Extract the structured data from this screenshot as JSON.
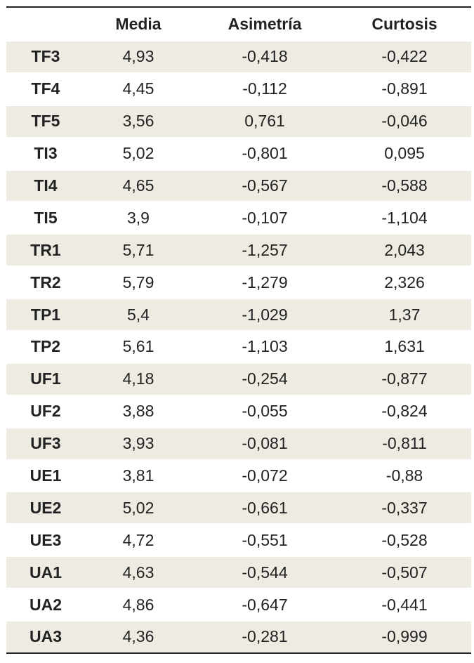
{
  "table": {
    "headers": [
      "",
      "Media",
      "Asimetría",
      "Curtosis"
    ],
    "rows": [
      {
        "label": "TF3",
        "media": "4,93",
        "asimetria": "-0,418",
        "curtosis": "-0,422"
      },
      {
        "label": "TF4",
        "media": "4,45",
        "asimetria": "-0,112",
        "curtosis": "-0,891"
      },
      {
        "label": "TF5",
        "media": "3,56",
        "asimetria": "0,761",
        "curtosis": "-0,046"
      },
      {
        "label": "TI3",
        "media": "5,02",
        "asimetria": "-0,801",
        "curtosis": "0,095"
      },
      {
        "label": "TI4",
        "media": "4,65",
        "asimetria": "-0,567",
        "curtosis": "-0,588"
      },
      {
        "label": "TI5",
        "media": "3,9",
        "asimetria": "-0,107",
        "curtosis": "-1,104"
      },
      {
        "label": "TR1",
        "media": "5,71",
        "asimetria": "-1,257",
        "curtosis": "2,043"
      },
      {
        "label": "TR2",
        "media": "5,79",
        "asimetria": "-1,279",
        "curtosis": "2,326"
      },
      {
        "label": "TP1",
        "media": "5,4",
        "asimetria": "-1,029",
        "curtosis": "1,37"
      },
      {
        "label": "TP2",
        "media": "5,61",
        "asimetria": "-1,103",
        "curtosis": "1,631"
      },
      {
        "label": "UF1",
        "media": "4,18",
        "asimetria": "-0,254",
        "curtosis": "-0,877"
      },
      {
        "label": "UF2",
        "media": "3,88",
        "asimetria": "-0,055",
        "curtosis": "-0,824"
      },
      {
        "label": "UF3",
        "media": "3,93",
        "asimetria": "-0,081",
        "curtosis": "-0,811"
      },
      {
        "label": "UE1",
        "media": "3,81",
        "asimetria": "-0,072",
        "curtosis": "-0,88"
      },
      {
        "label": "UE2",
        "media": "5,02",
        "asimetria": "-0,661",
        "curtosis": "-0,337"
      },
      {
        "label": "UE3",
        "media": "4,72",
        "asimetria": "-0,551",
        "curtosis": "-0,528"
      },
      {
        "label": "UA1",
        "media": "4,63",
        "asimetria": "-0,544",
        "curtosis": "-0,507"
      },
      {
        "label": "UA2",
        "media": "4,86",
        "asimetria": "-0,647",
        "curtosis": "-0,441"
      },
      {
        "label": "UA3",
        "media": "4,36",
        "asimetria": "-0,281",
        "curtosis": "-0,999"
      }
    ]
  },
  "colors": {
    "row_shade": "#eeebe3",
    "rule": "#222222"
  }
}
